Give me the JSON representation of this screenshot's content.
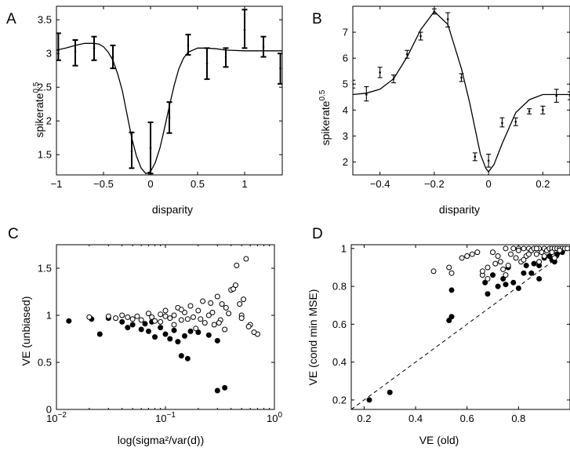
{
  "chart_data": [
    {
      "panel": "A",
      "type": "line",
      "xlabel": "disparity",
      "ylabel": "spikerate",
      "ylabel_sup": "0.5",
      "xlim": [
        -1,
        1.4
      ],
      "ylim": [
        1.2,
        3.7
      ],
      "xticks": [
        -1,
        -0.5,
        0,
        0.5,
        1
      ],
      "xtick_labels": [
        "−1",
        "−0.5",
        "0",
        "0.5",
        "1"
      ],
      "yticks": [
        1.5,
        2,
        2.5,
        3,
        3.5
      ],
      "ytick_labels": [
        "1.5",
        "2",
        "2.5",
        "3",
        "3.5"
      ],
      "series": [
        {
          "kind": "errorbar",
          "cap": 3.5,
          "bold": true,
          "points": [
            {
              "x": -0.98,
              "y": 3.05,
              "lo": 2.9,
              "hi": 3.3
            },
            {
              "x": -0.8,
              "y": 3.03,
              "lo": 2.82,
              "hi": 3.2
            },
            {
              "x": -0.6,
              "y": 3.08,
              "lo": 2.9,
              "hi": 3.25
            },
            {
              "x": -0.4,
              "y": 2.95,
              "lo": 2.78,
              "hi": 3.12
            },
            {
              "x": -0.2,
              "y": 1.55,
              "lo": 1.3,
              "hi": 1.83
            },
            {
              "x": 0,
              "y": 1.6,
              "lo": 1.22,
              "hi": 1.98
            },
            {
              "x": 0.2,
              "y": 2.05,
              "lo": 1.82,
              "hi": 2.28
            },
            {
              "x": 0.4,
              "y": 3.12,
              "lo": 2.98,
              "hi": 3.28
            },
            {
              "x": 0.6,
              "y": 2.85,
              "lo": 2.62,
              "hi": 3.08
            },
            {
              "x": 0.8,
              "y": 2.95,
              "lo": 2.8,
              "hi": 3.08
            },
            {
              "x": 1.0,
              "y": 3.35,
              "lo": 3.08,
              "hi": 3.65
            },
            {
              "x": 1.2,
              "y": 3.1,
              "lo": 2.95,
              "hi": 3.25
            },
            {
              "x": 1.38,
              "y": 2.78,
              "lo": 2.55,
              "hi": 3.0
            }
          ]
        },
        {
          "kind": "curve",
          "x": [
            -1,
            -0.9,
            -0.8,
            -0.7,
            -0.6,
            -0.55,
            -0.5,
            -0.45,
            -0.4,
            -0.35,
            -0.3,
            -0.25,
            -0.2,
            -0.15,
            -0.1,
            -0.05,
            0,
            0.05,
            0.1,
            0.15,
            0.2,
            0.25,
            0.3,
            0.35,
            0.4,
            0.5,
            0.6,
            0.7,
            0.8,
            1.0,
            1.2,
            1.4
          ],
          "y": [
            3.05,
            3.08,
            3.12,
            3.15,
            3.15,
            3.14,
            3.1,
            3.02,
            2.9,
            2.7,
            2.45,
            2.1,
            1.75,
            1.48,
            1.3,
            1.22,
            1.25,
            1.38,
            1.6,
            1.9,
            2.22,
            2.52,
            2.77,
            2.93,
            3.02,
            3.08,
            3.08,
            3.07,
            3.05,
            3.04,
            3.04,
            3.04
          ]
        }
      ]
    },
    {
      "panel": "B",
      "type": "line",
      "xlabel": "disparity",
      "ylabel": "spikerate",
      "ylabel_sup": "0.5",
      "xlim": [
        -0.5,
        0.3
      ],
      "ylim": [
        1.5,
        8
      ],
      "xticks": [
        -0.4,
        -0.2,
        0,
        0.2
      ],
      "xtick_labels": [
        "−0.4",
        "−0.2",
        "0",
        "0.2"
      ],
      "yticks": [
        2,
        3,
        4,
        5,
        6,
        7
      ],
      "ytick_labels": [
        "2",
        "3",
        "4",
        "5",
        "6",
        "7"
      ],
      "series": [
        {
          "kind": "errorbar",
          "cap": 3,
          "points": [
            {
              "x": -0.5,
              "y": 5.0,
              "lo": 4.85,
              "hi": 5.15
            },
            {
              "x": -0.45,
              "y": 4.6,
              "lo": 4.35,
              "hi": 4.9
            },
            {
              "x": -0.4,
              "y": 5.45,
              "lo": 5.25,
              "hi": 5.65
            },
            {
              "x": -0.35,
              "y": 5.2,
              "lo": 5.05,
              "hi": 5.35
            },
            {
              "x": -0.3,
              "y": 6.15,
              "lo": 6.0,
              "hi": 6.3
            },
            {
              "x": -0.25,
              "y": 6.85,
              "lo": 6.7,
              "hi": 7.0
            },
            {
              "x": -0.2,
              "y": 7.8,
              "lo": 7.7,
              "hi": 7.9
            },
            {
              "x": -0.15,
              "y": 7.5,
              "lo": 7.2,
              "hi": 7.75
            },
            {
              "x": -0.1,
              "y": 5.25,
              "lo": 5.1,
              "hi": 5.4
            },
            {
              "x": -0.05,
              "y": 2.2,
              "lo": 2.05,
              "hi": 2.35
            },
            {
              "x": 0,
              "y": 2.05,
              "lo": 1.8,
              "hi": 2.3
            },
            {
              "x": 0.05,
              "y": 3.5,
              "lo": 3.35,
              "hi": 3.7
            },
            {
              "x": 0.1,
              "y": 3.55,
              "lo": 3.4,
              "hi": 3.7
            },
            {
              "x": 0.15,
              "y": 3.95,
              "lo": 3.85,
              "hi": 4.05
            },
            {
              "x": 0.2,
              "y": 4.0,
              "lo": 3.85,
              "hi": 4.15
            },
            {
              "x": 0.25,
              "y": 4.55,
              "lo": 4.3,
              "hi": 4.8
            },
            {
              "x": 0.3,
              "y": 4.55,
              "lo": 4.4,
              "hi": 4.7
            }
          ]
        },
        {
          "kind": "curve",
          "x": [
            -0.5,
            -0.45,
            -0.4,
            -0.35,
            -0.3,
            -0.25,
            -0.2,
            -0.15,
            -0.1,
            -0.07,
            -0.05,
            -0.03,
            -0.01,
            0,
            0.02,
            0.05,
            0.1,
            0.15,
            0.2,
            0.25,
            0.3
          ],
          "y": [
            4.6,
            4.65,
            4.8,
            5.2,
            6.05,
            7.1,
            7.8,
            7.3,
            5.6,
            4.3,
            3.3,
            2.3,
            1.75,
            1.62,
            1.9,
            2.7,
            3.9,
            4.4,
            4.6,
            4.6,
            4.6
          ]
        }
      ]
    },
    {
      "panel": "C",
      "type": "scatter",
      "xlabel": "log(sigma²/var(d))",
      "ylabel": "VE (unbiased)",
      "xscale": "log",
      "xlim": [
        0.01,
        1
      ],
      "ylim": [
        0,
        1.75
      ],
      "xticks": [
        0.01,
        0.1,
        1
      ],
      "xtick_labels": [
        "10",
        "10",
        "10"
      ],
      "xtick_sups": [
        "−2",
        "−1",
        "0"
      ],
      "yticks": [
        0,
        0.5,
        1,
        1.5
      ],
      "ytick_labels": [
        "0",
        "0.5",
        "1",
        "1.5"
      ],
      "series": [
        {
          "marker": "filled",
          "x": [
            0.013,
            0.021,
            0.025,
            0.03,
            0.04,
            0.05,
            0.06,
            0.065,
            0.07,
            0.08,
            0.09,
            0.1,
            0.12,
            0.13,
            0.15,
            0.17,
            0.2,
            0.25,
            0.14,
            0.16,
            0.3,
            0.35,
            0.045,
            0.075,
            0.11,
            0.3
          ],
          "y": [
            0.94,
            0.96,
            0.8,
            0.97,
            0.93,
            0.9,
            0.85,
            0.91,
            0.83,
            0.77,
            0.87,
            0.8,
            0.84,
            0.72,
            0.78,
            0.83,
            0.82,
            0.79,
            0.57,
            0.54,
            0.2,
            0.23,
            0.87,
            0.93,
            0.75,
            0.73
          ]
        },
        {
          "marker": "open",
          "x": [
            0.02,
            0.03,
            0.035,
            0.04,
            0.045,
            0.05,
            0.055,
            0.06,
            0.07,
            0.075,
            0.08,
            0.09,
            0.1,
            0.11,
            0.12,
            0.13,
            0.14,
            0.15,
            0.17,
            0.18,
            0.2,
            0.22,
            0.25,
            0.28,
            0.3,
            0.33,
            0.35,
            0.4,
            0.45,
            0.5,
            0.55,
            0.6,
            0.7,
            0.09,
            0.12,
            0.16,
            0.19,
            0.23,
            0.27,
            0.32,
            0.36,
            0.42,
            0.48,
            0.52,
            0.58,
            0.65,
            0.1,
            0.14,
            0.21,
            0.26,
            0.31,
            0.38,
            0.44,
            0.5
          ],
          "y": [
            0.98,
            0.99,
            0.97,
            1.0,
            0.98,
            0.96,
            0.99,
            0.95,
            1.02,
            0.98,
            0.94,
            1.01,
            1.05,
            0.97,
            1.0,
            1.08,
            0.95,
            1.03,
            1.1,
            0.98,
            1.05,
            1.15,
            1.0,
            0.9,
            1.2,
            1.12,
            0.85,
            1.27,
            1.53,
            1.0,
            1.6,
            0.9,
            0.8,
            0.93,
            0.9,
            0.96,
            0.86,
            0.92,
            1.03,
            0.95,
            1.08,
            1.28,
            1.12,
            1.17,
            0.88,
            0.82,
            0.99,
            1.06,
            0.96,
            1.13,
            0.92,
            1.02,
            1.32,
            0.97
          ]
        }
      ]
    },
    {
      "panel": "D",
      "type": "scatter",
      "xlabel": "VE (old)",
      "ylabel": "VE (cond min MSE)",
      "xlim": [
        0.15,
        1.0
      ],
      "ylim": [
        0.15,
        1.02
      ],
      "xticks": [
        0.2,
        0.4,
        0.6,
        0.8
      ],
      "xtick_labels": [
        "0.2",
        "0.4",
        "0.6",
        "0.8"
      ],
      "yticks": [
        0.2,
        0.4,
        0.6,
        0.8,
        1
      ],
      "ytick_labels": [
        "0.2",
        "0.4",
        "0.6",
        "0.8",
        "1"
      ],
      "reference_line": "y = x (dashed)",
      "series": [
        {
          "marker": "filled",
          "x": [
            0.22,
            0.3,
            0.53,
            0.54,
            0.54,
            0.67,
            0.68,
            0.7,
            0.72,
            0.74,
            0.75,
            0.78,
            0.8,
            0.82,
            0.85,
            0.86,
            0.88,
            0.9,
            0.92,
            0.93,
            0.95,
            0.97,
            0.88,
            0.94,
            0.76,
            0.83
          ],
          "y": [
            0.2,
            0.24,
            0.62,
            0.64,
            0.78,
            0.82,
            0.76,
            0.86,
            0.8,
            0.84,
            0.81,
            0.82,
            0.79,
            0.87,
            0.87,
            0.92,
            0.91,
            0.95,
            0.96,
            0.94,
            0.97,
            0.98,
            0.84,
            0.93,
            0.9,
            0.91
          ]
        },
        {
          "marker": "open",
          "x": [
            0.47,
            0.53,
            0.54,
            0.58,
            0.6,
            0.62,
            0.64,
            0.66,
            0.68,
            0.7,
            0.71,
            0.72,
            0.74,
            0.75,
            0.76,
            0.78,
            0.79,
            0.8,
            0.81,
            0.82,
            0.83,
            0.84,
            0.85,
            0.86,
            0.87,
            0.88,
            0.89,
            0.9,
            0.91,
            0.92,
            0.93,
            0.94,
            0.95,
            0.96,
            0.97,
            0.98,
            0.99,
            0.66,
            0.73,
            0.77,
            0.8,
            0.84,
            0.87,
            0.9,
            0.93,
            0.96,
            0.68,
            0.75,
            0.82,
            0.88,
            0.94
          ],
          "y": [
            0.88,
            0.9,
            0.87,
            0.95,
            0.96,
            0.97,
            0.98,
            0.86,
            0.84,
            0.98,
            0.92,
            0.96,
            0.89,
            1.0,
            0.91,
            1.0,
            0.95,
            1.0,
            0.93,
            1.0,
            0.96,
            1.0,
            0.99,
            1.0,
            0.97,
            1.0,
            0.98,
            1.0,
            0.99,
            1.0,
            1.0,
            1.0,
            1.0,
            1.0,
            1.0,
            1.0,
            1.0,
            0.88,
            0.93,
            0.97,
            0.99,
            0.97,
            1.0,
            0.96,
            0.98,
            0.99,
            0.9,
            0.86,
            0.94,
            0.93,
            0.95
          ]
        }
      ]
    }
  ]
}
